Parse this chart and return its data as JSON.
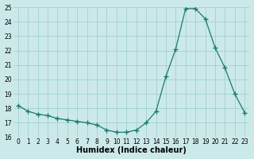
{
  "x": [
    0,
    1,
    2,
    3,
    4,
    5,
    6,
    7,
    8,
    9,
    10,
    11,
    12,
    13,
    14,
    15,
    16,
    17,
    18,
    19,
    20,
    21,
    22,
    23
  ],
  "y": [
    18.2,
    17.8,
    17.6,
    17.5,
    17.3,
    17.2,
    17.1,
    17.0,
    16.85,
    16.5,
    16.35,
    16.35,
    16.5,
    17.0,
    17.8,
    20.2,
    22.1,
    24.9,
    24.9,
    24.2,
    22.2,
    20.8,
    19.0,
    17.7
  ],
  "line_color": "#1a7a6e",
  "marker_color": "#1a7a6e",
  "bg_color": "#cce9e9",
  "grid_color": "#99cccc",
  "xlabel": "Humidex (Indice chaleur)",
  "ylim": [
    16,
    25
  ],
  "xlim_min": -0.5,
  "xlim_max": 23.5,
  "yticks": [
    16,
    17,
    18,
    19,
    20,
    21,
    22,
    23,
    24,
    25
  ],
  "xticks": [
    0,
    1,
    2,
    3,
    4,
    5,
    6,
    7,
    8,
    9,
    10,
    11,
    12,
    13,
    14,
    15,
    16,
    17,
    18,
    19,
    20,
    21,
    22,
    23
  ],
  "tick_fontsize": 5.5,
  "label_fontsize": 7
}
